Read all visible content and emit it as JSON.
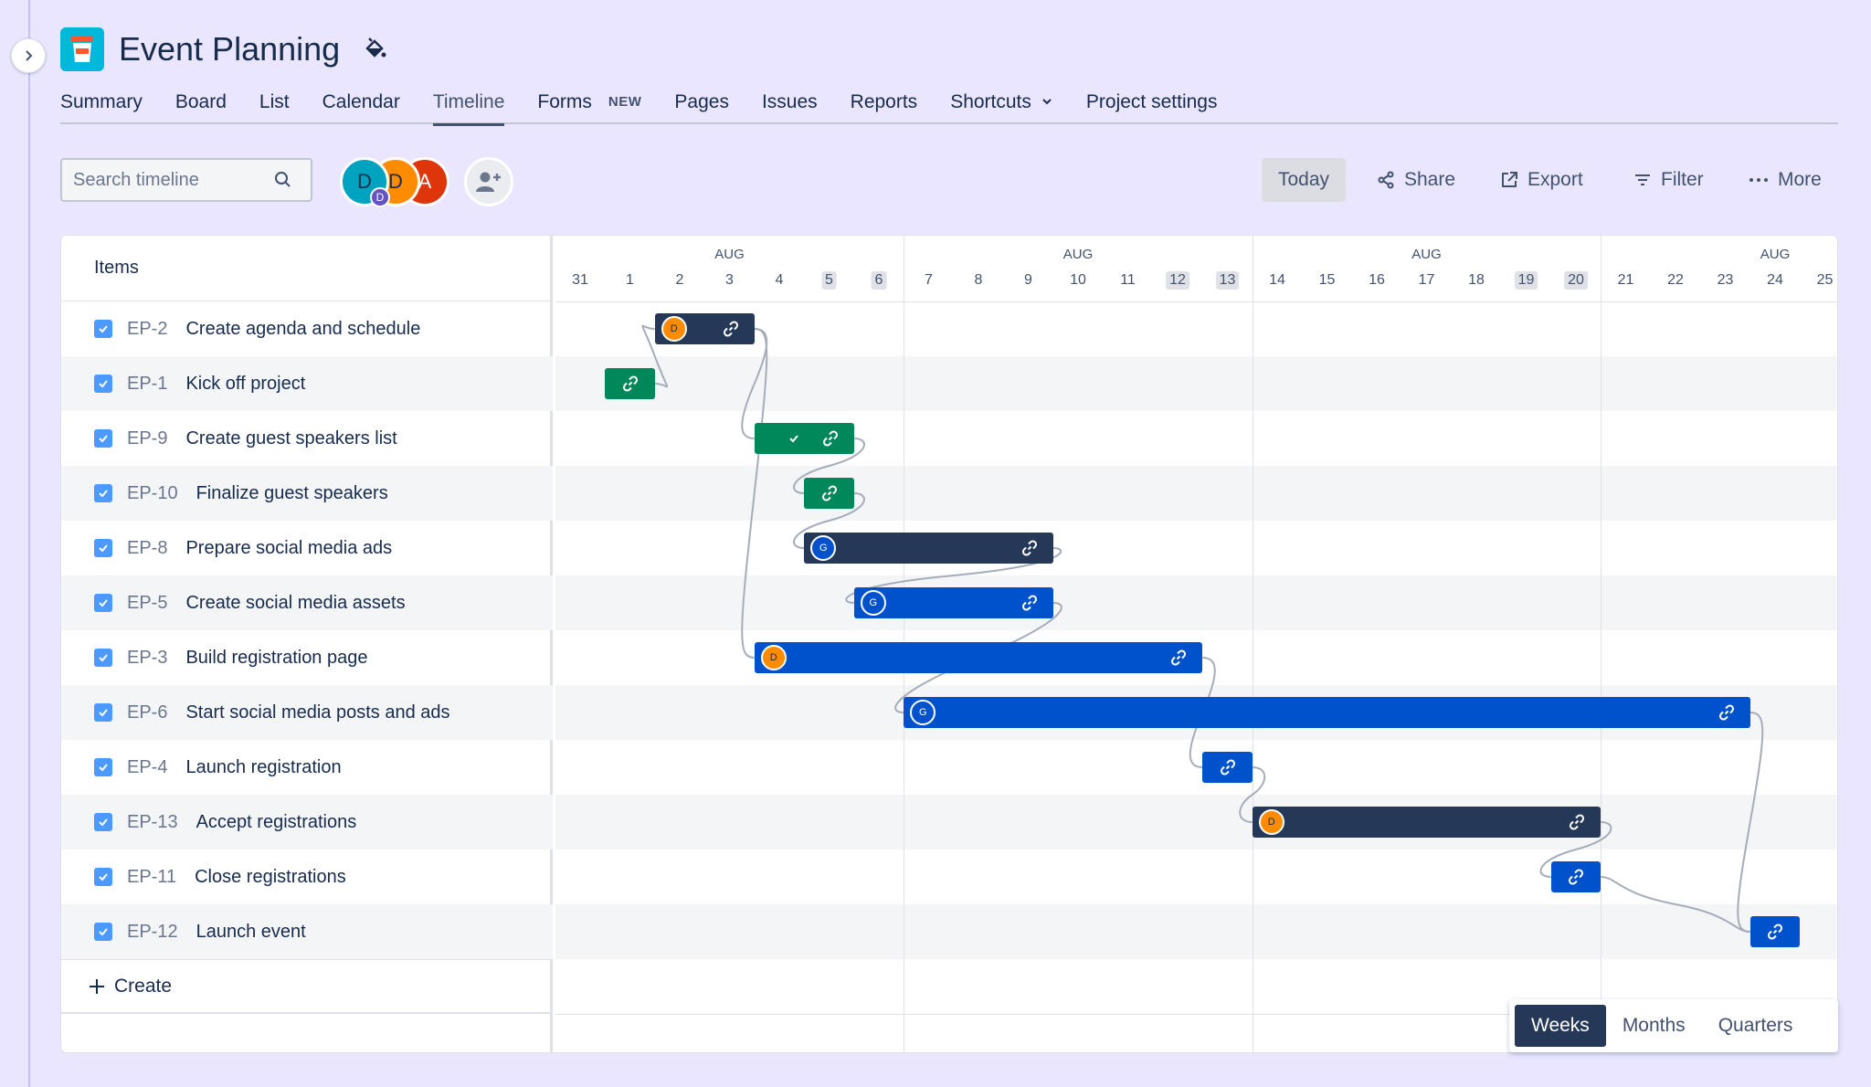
{
  "project": {
    "title": "Event Planning"
  },
  "nav": [
    {
      "label": "Summary"
    },
    {
      "label": "Board"
    },
    {
      "label": "List"
    },
    {
      "label": "Calendar"
    },
    {
      "label": "Timeline",
      "active": true
    },
    {
      "label": "Forms",
      "badge": "NEW"
    },
    {
      "label": "Pages"
    },
    {
      "label": "Issues"
    },
    {
      "label": "Reports"
    },
    {
      "label": "Shortcuts"
    },
    {
      "label": "Project settings"
    }
  ],
  "toolbar": {
    "search_placeholder": "Search timeline",
    "avatars": [
      {
        "initial": "D",
        "sub": "D",
        "color": "#00A3BF"
      },
      {
        "initial": "D",
        "color": "#FF8B00"
      },
      {
        "initial": "A",
        "color": "#DE350B"
      }
    ],
    "today": "Today",
    "share": "Share",
    "export": "Export",
    "filter": "Filter",
    "more": "More"
  },
  "timeline": {
    "items_header": "Items",
    "month_label": "AUG",
    "days": [
      "31",
      "1",
      "2",
      "3",
      "4",
      "5",
      "6",
      "7",
      "8",
      "9",
      "10",
      "11",
      "12",
      "13",
      "14",
      "15",
      "16",
      "17",
      "18",
      "19",
      "20",
      "21",
      "22",
      "23",
      "24",
      "25"
    ],
    "weekend_days": [
      "5",
      "6",
      "12",
      "13",
      "19",
      "20"
    ],
    "create_label": "Create",
    "rows": [
      {
        "key": "EP-2",
        "summary": "Create agenda and schedule",
        "start": 2,
        "end": 4,
        "color": "dark",
        "assignee": "D"
      },
      {
        "key": "EP-1",
        "summary": "Kick off project",
        "start": 1,
        "end": 2,
        "color": "green",
        "assignee": ""
      },
      {
        "key": "EP-9",
        "summary": "Create guest speakers list",
        "start": 4,
        "end": 6,
        "color": "green",
        "assignee": "",
        "done": true
      },
      {
        "key": "EP-10",
        "summary": "Finalize guest speakers",
        "start": 5,
        "end": 6,
        "color": "green",
        "assignee": ""
      },
      {
        "key": "EP-8",
        "summary": "Prepare social media ads",
        "start": 5,
        "end": 10,
        "color": "dark",
        "assignee": "G"
      },
      {
        "key": "EP-5",
        "summary": "Create social media assets",
        "start": 6,
        "end": 10,
        "color": "blue",
        "assignee": "G"
      },
      {
        "key": "EP-3",
        "summary": "Build registration page",
        "start": 4,
        "end": 13,
        "color": "blue",
        "assignee": "D"
      },
      {
        "key": "EP-6",
        "summary": "Start social media posts and ads",
        "start": 7,
        "end": 24,
        "color": "blue",
        "assignee": "G"
      },
      {
        "key": "EP-4",
        "summary": "Launch registration",
        "start": 13,
        "end": 14,
        "color": "blue",
        "assignee": ""
      },
      {
        "key": "EP-13",
        "summary": "Accept registrations",
        "start": 14,
        "end": 21,
        "color": "dark",
        "assignee": "D"
      },
      {
        "key": "EP-11",
        "summary": "Close registrations",
        "start": 20,
        "end": 21,
        "color": "blue",
        "assignee": ""
      },
      {
        "key": "EP-12",
        "summary": "Launch event",
        "start": 24,
        "end": 25,
        "color": "blue",
        "assignee": ""
      }
    ]
  },
  "zoom": {
    "options": [
      "Weeks",
      "Months",
      "Quarters"
    ],
    "selected": "Weeks"
  }
}
